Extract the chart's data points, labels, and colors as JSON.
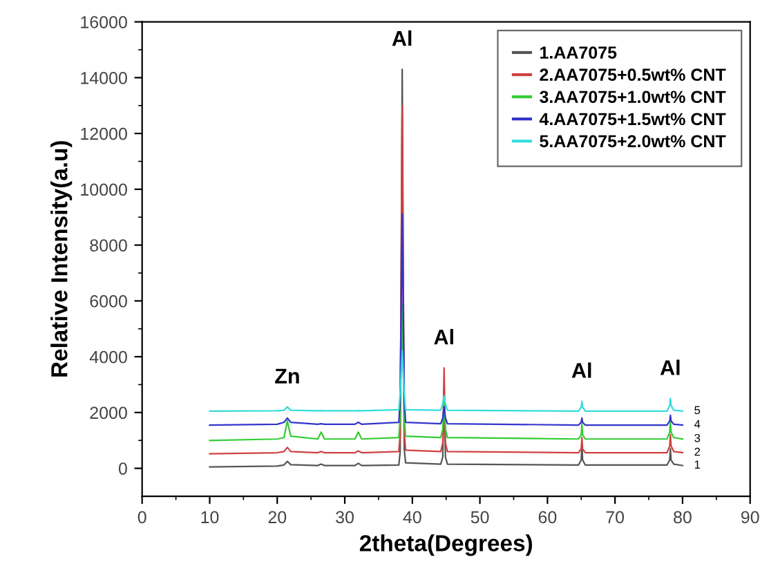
{
  "chart_data": {
    "type": "line",
    "xlabel": "2theta(Degrees)",
    "ylabel": "Relative Intensity(a.u)",
    "x": [
      10,
      20,
      21,
      21.5,
      22,
      26,
      26.5,
      27,
      31.5,
      32,
      32.5,
      38,
      38.2,
      38.5,
      38.8,
      39,
      44.2,
      44.5,
      44.7,
      44.9,
      45.2,
      64.6,
      65,
      65.1,
      65.2,
      65.6,
      77.7,
      78.1,
      78.2,
      78.3,
      78.7,
      80
    ],
    "series": [
      {
        "name": "1.AA7075",
        "color": "#555555",
        "values": [
          50,
          80,
          120,
          250,
          130,
          100,
          150,
          100,
          100,
          180,
          100,
          120,
          600,
          14300,
          700,
          200,
          150,
          400,
          2800,
          400,
          150,
          120,
          300,
          900,
          300,
          120,
          120,
          300,
          700,
          300,
          150,
          100
        ]
      },
      {
        "name": "2.AA7075+0.5wt% CNT",
        "color": "#d04040",
        "values": [
          520,
          560,
          600,
          750,
          600,
          560,
          600,
          560,
          560,
          620,
          560,
          600,
          1200,
          13000,
          1300,
          650,
          600,
          900,
          3600,
          900,
          600,
          560,
          700,
          1100,
          700,
          560,
          560,
          800,
          1200,
          800,
          600,
          560
        ]
      },
      {
        "name": "3.AA7075+1.0wt% CNT",
        "color": "#33cc33",
        "values": [
          1000,
          1050,
          1100,
          1700,
          1150,
          1050,
          1300,
          1050,
          1050,
          1300,
          1050,
          1100,
          1800,
          5900,
          1800,
          1150,
          1100,
          1400,
          2400,
          1400,
          1100,
          1050,
          1200,
          1600,
          1200,
          1050,
          1050,
          1300,
          1700,
          1300,
          1100,
          1050
        ]
      },
      {
        "name": "4.AA7075+1.5wt% CNT",
        "color": "#3333cc",
        "values": [
          1550,
          1580,
          1650,
          1800,
          1650,
          1580,
          1600,
          1580,
          1580,
          1650,
          1580,
          1650,
          2500,
          9100,
          2500,
          1650,
          1600,
          1800,
          2200,
          1800,
          1600,
          1550,
          1650,
          1800,
          1650,
          1550,
          1550,
          1700,
          1900,
          1700,
          1580,
          1550
        ]
      },
      {
        "name": "5.AA7075+2.0wt% CNT",
        "color": "#33dddd",
        "values": [
          2050,
          2060,
          2080,
          2200,
          2080,
          2060,
          2070,
          2060,
          2060,
          2070,
          2060,
          2100,
          2700,
          4200,
          2700,
          2100,
          2080,
          2300,
          2600,
          2300,
          2080,
          2050,
          2200,
          2400,
          2200,
          2050,
          2050,
          2250,
          2500,
          2250,
          2080,
          2050
        ]
      }
    ],
    "xlim": [
      0,
      90
    ],
    "xticks": [
      0,
      10,
      20,
      30,
      40,
      50,
      60,
      70,
      80,
      90
    ],
    "ylim": [
      -1000,
      16000
    ],
    "yticks": [
      0,
      2000,
      4000,
      6000,
      8000,
      10000,
      12000,
      14000,
      16000
    ],
    "grid": false,
    "legend": "top right",
    "marker": "none",
    "line_style": "solid",
    "annotations": [
      {
        "text": "Zn",
        "x": 21.5,
        "y": 2200
      },
      {
        "text": "Al",
        "x": 38.5,
        "y": 14300
      },
      {
        "text": "Al",
        "x": 44.7,
        "y": 3600
      },
      {
        "text": "Al",
        "x": 65.1,
        "y": 2400
      },
      {
        "text": "Al",
        "x": 78.2,
        "y": 2500
      },
      {
        "text": "1",
        "x": 80,
        "y": 100
      },
      {
        "text": "2",
        "x": 80,
        "y": 560
      },
      {
        "text": "3",
        "x": 80,
        "y": 1050
      },
      {
        "text": "4",
        "x": 80,
        "y": 1550
      },
      {
        "text": "5",
        "x": 80,
        "y": 2050
      }
    ]
  }
}
